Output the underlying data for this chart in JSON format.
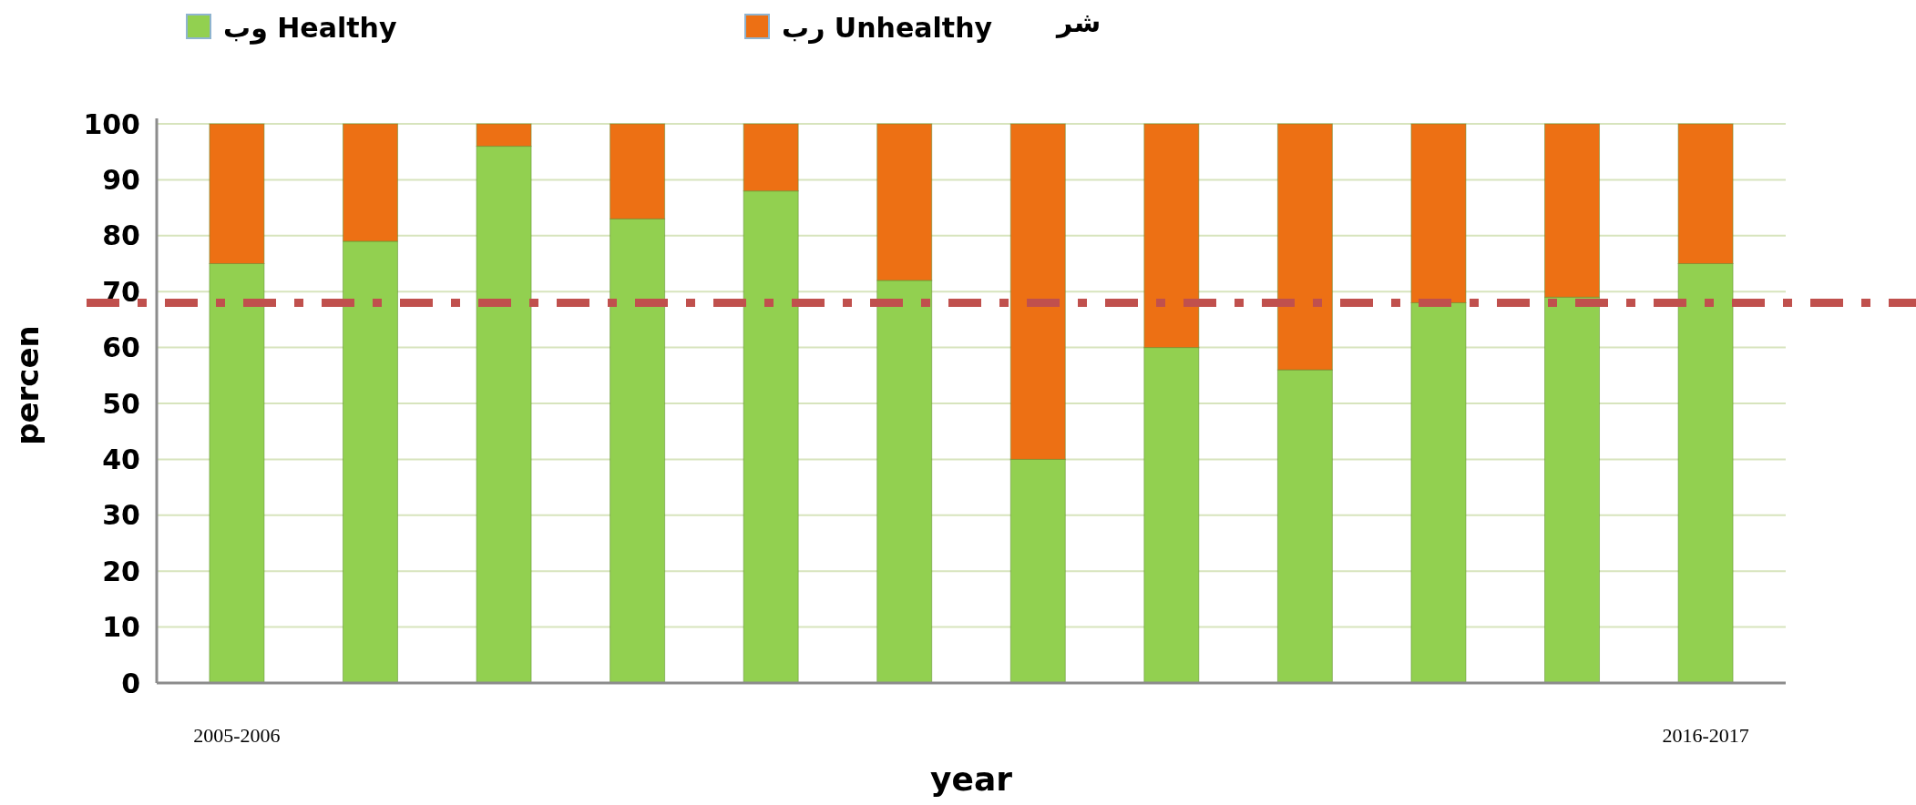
{
  "chart_data": {
    "type": "bar",
    "stacked": true,
    "categories": [
      "2005-2006",
      null,
      null,
      null,
      null,
      null,
      null,
      null,
      null,
      null,
      null,
      "2016-2017"
    ],
    "series": [
      {
        "name": "وب Healthy",
        "color": "#92d050",
        "values": [
          75,
          79,
          96,
          83,
          88,
          72,
          40,
          60,
          56,
          68,
          69,
          75
        ]
      },
      {
        "name": "رب Unhealthy",
        "color": "#ed7014",
        "values": [
          25,
          21,
          4,
          17,
          12,
          28,
          60,
          40,
          44,
          32,
          31,
          25
        ]
      }
    ],
    "ylim": [
      0,
      100
    ],
    "yticks": [
      0,
      10,
      20,
      30,
      40,
      50,
      60,
      70,
      80,
      90,
      100
    ],
    "ylabel": "percen",
    "xlabel": "year",
    "ref_lines": [
      {
        "axis": "y",
        "value": 68,
        "color": "#c0504d",
        "line_style": "dashdot"
      }
    ],
    "grid": "y",
    "legend": "top",
    "annotations": [
      "شر"
    ]
  }
}
